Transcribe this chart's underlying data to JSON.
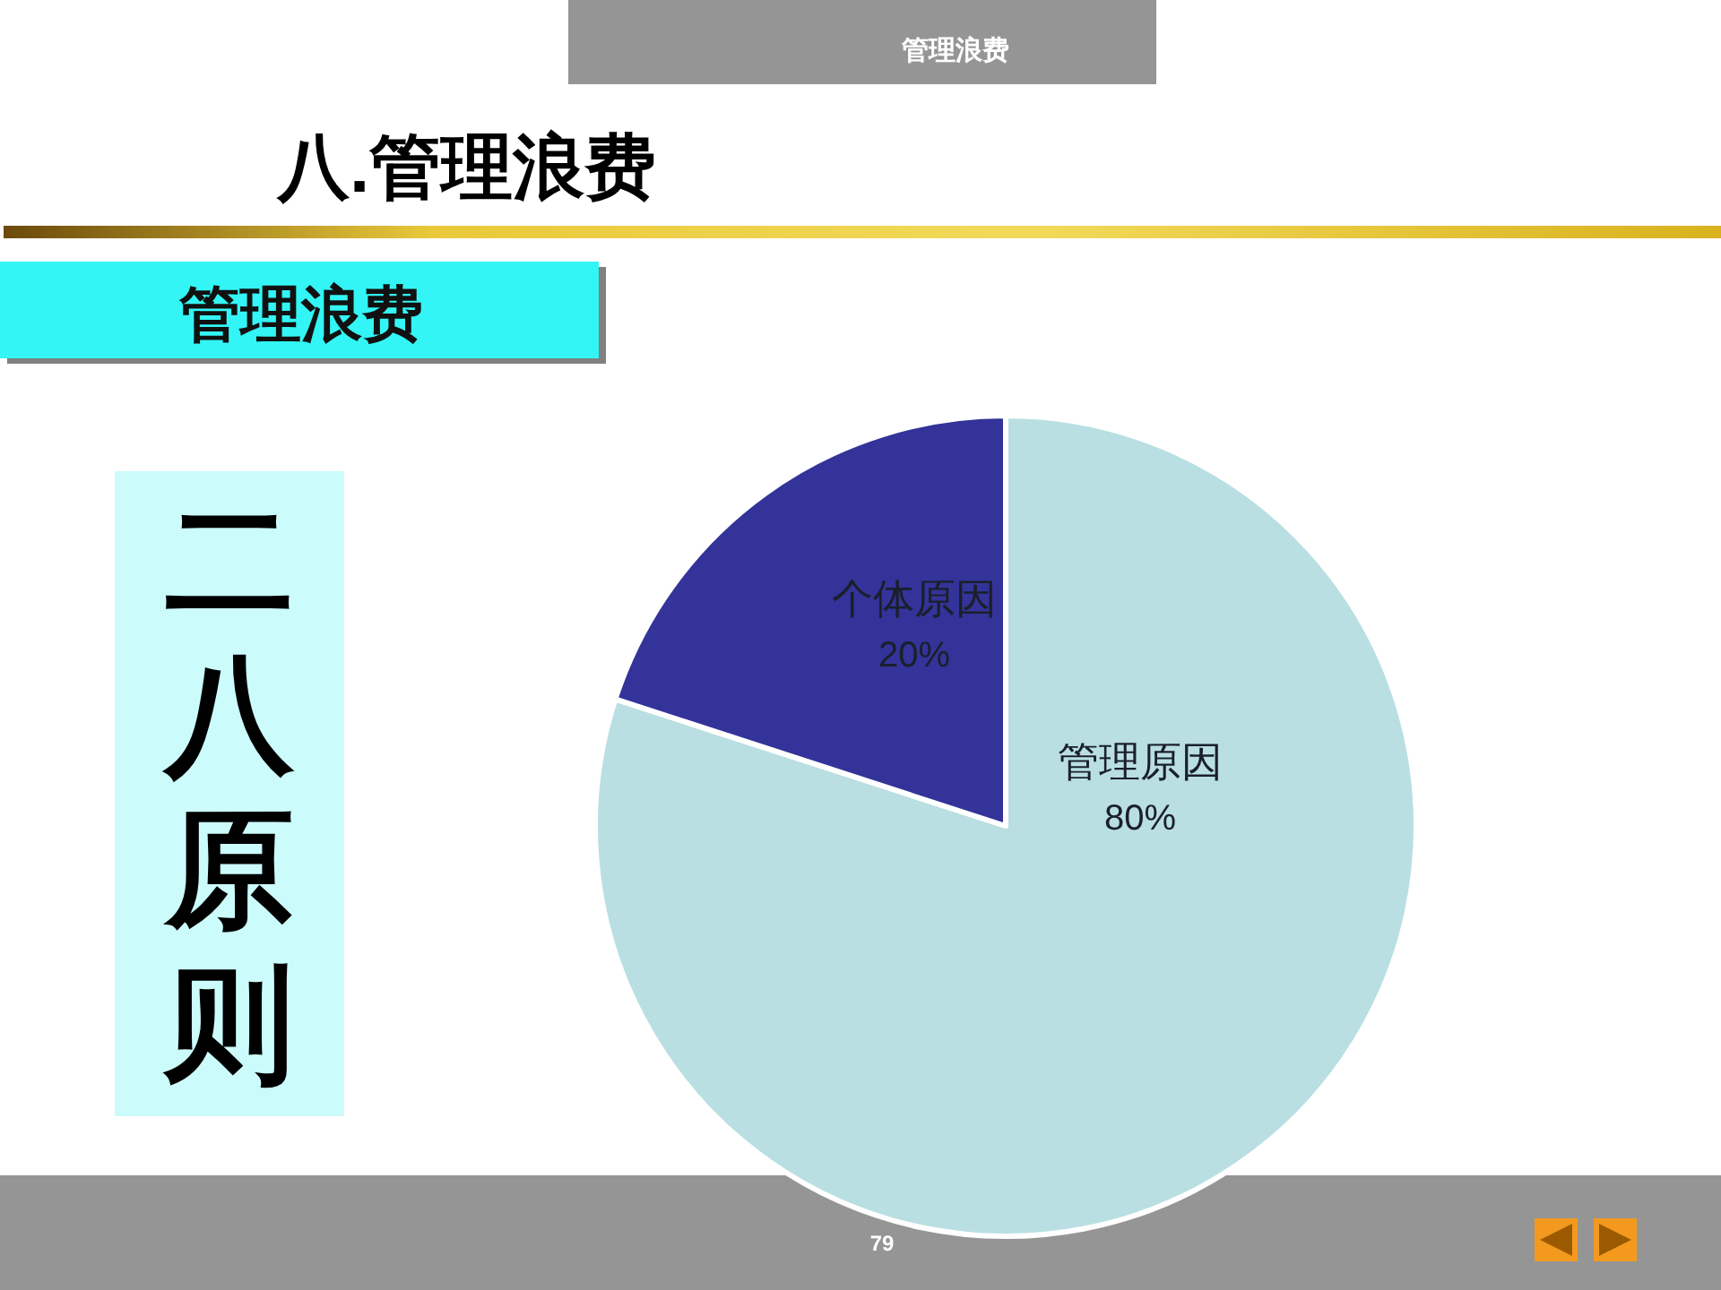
{
  "chart_data": {
    "type": "pie",
    "title": "八.管理浪费",
    "subtitle": "管理浪费",
    "categories": [
      "管理原因",
      "个体原因"
    ],
    "values": [
      80,
      20
    ],
    "colors": [
      "#b9dfe2",
      "#333399"
    ],
    "value_labels": [
      "80%",
      "20%"
    ],
    "annotations": [
      "管理浪费",
      "二八原则",
      "79"
    ]
  }
}
